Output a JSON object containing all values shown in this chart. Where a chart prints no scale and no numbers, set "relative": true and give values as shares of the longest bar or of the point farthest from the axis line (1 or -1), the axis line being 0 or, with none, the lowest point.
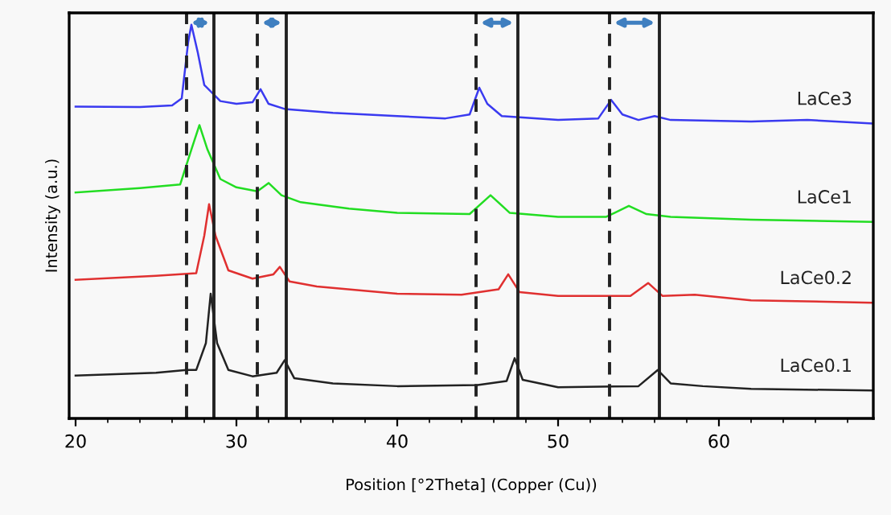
{
  "chart_data": {
    "type": "line",
    "relative": true,
    "xlabel": "Position [°2Theta] (Copper (Cu))",
    "ylabel": "Intensity (a.u.)",
    "xlim": [
      19.6,
      69.6
    ],
    "xticks": [
      20,
      30,
      40,
      50,
      60
    ],
    "grid": false,
    "legend": false,
    "marker": "none",
    "line_style": "solid",
    "series": [
      {
        "name": "LaCe3",
        "color": "#3a3af0",
        "x": [
          20,
          24,
          26,
          26.6,
          27.0,
          27.2,
          27.6,
          28.0,
          29,
          30,
          31,
          31.5,
          32,
          33,
          36,
          40,
          43,
          44.5,
          45.1,
          45.6,
          46.5,
          50,
          52.5,
          53.3,
          54,
          55,
          56,
          57,
          62,
          65.5,
          69.5
        ],
        "values": [
          0.792,
          0.791,
          0.795,
          0.813,
          0.956,
          1.0,
          0.929,
          0.847,
          0.806,
          0.799,
          0.803,
          0.836,
          0.799,
          0.786,
          0.776,
          0.768,
          0.762,
          0.772,
          0.84,
          0.799,
          0.768,
          0.758,
          0.762,
          0.809,
          0.772,
          0.758,
          0.768,
          0.758,
          0.754,
          0.758,
          0.749
        ]
      },
      {
        "name": "LaCe1",
        "color": "#22dd22",
        "x": [
          20,
          24,
          26.5,
          27.2,
          27.7,
          28.2,
          29,
          30,
          31.3,
          32.0,
          32.8,
          34,
          37,
          40,
          44.5,
          45.8,
          47,
          50,
          53,
          54.4,
          55.5,
          57,
          62,
          69.5
        ],
        "values": [
          0.574,
          0.585,
          0.594,
          0.683,
          0.745,
          0.683,
          0.608,
          0.587,
          0.577,
          0.598,
          0.567,
          0.549,
          0.533,
          0.522,
          0.519,
          0.567,
          0.522,
          0.512,
          0.512,
          0.54,
          0.519,
          0.512,
          0.505,
          0.499
        ]
      },
      {
        "name": "LaCe0.2",
        "color": "#e03030",
        "x": [
          20,
          25,
          27.5,
          28.0,
          28.3,
          28.7,
          29.5,
          31,
          32.3,
          32.7,
          33.3,
          35,
          40,
          44,
          46.3,
          46.9,
          47.6,
          50,
          54.5,
          55.6,
          56.5,
          58.5,
          62,
          69.5
        ],
        "values": [
          0.352,
          0.362,
          0.369,
          0.464,
          0.544,
          0.464,
          0.376,
          0.355,
          0.366,
          0.385,
          0.348,
          0.335,
          0.317,
          0.314,
          0.328,
          0.366,
          0.321,
          0.311,
          0.311,
          0.344,
          0.311,
          0.314,
          0.3,
          0.294
        ]
      },
      {
        "name": "LaCe0.1",
        "color": "#222222",
        "x": [
          20,
          25,
          26.9,
          27.5,
          28.1,
          28.4,
          28.8,
          29.5,
          31,
          32.5,
          33.0,
          33.6,
          36,
          40,
          45,
          46.8,
          47.3,
          47.8,
          50,
          55,
          56.2,
          57,
          59,
          62,
          69.5
        ],
        "values": [
          0.109,
          0.116,
          0.123,
          0.123,
          0.191,
          0.317,
          0.191,
          0.123,
          0.107,
          0.116,
          0.148,
          0.102,
          0.089,
          0.082,
          0.085,
          0.095,
          0.153,
          0.098,
          0.079,
          0.082,
          0.123,
          0.089,
          0.082,
          0.075,
          0.071
        ]
      }
    ],
    "ref_lines": [
      {
        "axis": "x",
        "value": 26.9,
        "color": "#222222",
        "line_style": "dashed"
      },
      {
        "axis": "x",
        "value": 28.6,
        "color": "#222222",
        "line_style": "solid"
      },
      {
        "axis": "x",
        "value": 31.3,
        "color": "#222222",
        "line_style": "dashed"
      },
      {
        "axis": "x",
        "value": 33.1,
        "color": "#222222",
        "line_style": "solid"
      },
      {
        "axis": "x",
        "value": 44.9,
        "color": "#222222",
        "line_style": "dashed"
      },
      {
        "axis": "x",
        "value": 47.5,
        "color": "#222222",
        "line_style": "solid"
      },
      {
        "axis": "x",
        "value": 53.2,
        "color": "#222222",
        "line_style": "dashed"
      },
      {
        "axis": "x",
        "value": 56.3,
        "color": "#222222",
        "line_style": "solid"
      }
    ]
  }
}
